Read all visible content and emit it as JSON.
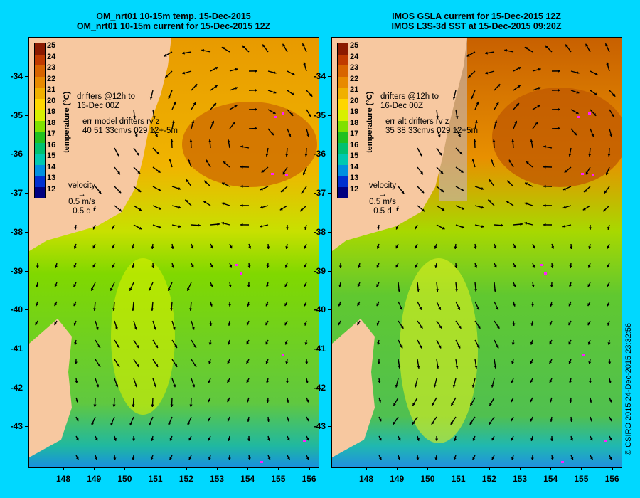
{
  "left_panel": {
    "title_line1": "OM_nrt01 10-15m temp. 15-Dec-2015",
    "title_line2": "OM_nrt01 10-15m current for 15-Dec-2015 12Z",
    "drifters_line1": "drifters @12h to",
    "drifters_line2": "16-Dec 00Z",
    "err_line1": "err model drifters rv z",
    "err_line2": "40 51 33cm/s 029 12+-5m"
  },
  "right_panel": {
    "title_line1": "IMOS GSLA current for 15-Dec-2015 12Z",
    "title_line2": "IMOS L3S-3d SST at 15-Dec-2015 09:20Z",
    "drifters_line1": "drifters @12h to",
    "drifters_line2": "16-Dec 00Z",
    "err_line1": "err alt drifters rv z",
    "err_line2": "35 38 33cm/s 029 12+5m"
  },
  "velocity_legend": {
    "label": "velocity",
    "speed": "0.5 m/s",
    "duration": "0.5 d"
  },
  "colorbar": {
    "title": "temperature (°C)",
    "ticks": [
      "25",
      "24",
      "23",
      "22",
      "21",
      "20",
      "19",
      "18",
      "17",
      "16",
      "15",
      "14",
      "13",
      "12"
    ],
    "colors": [
      "#8b1a00",
      "#c03a00",
      "#d86400",
      "#e88a00",
      "#f0b000",
      "#ffd600",
      "#d8f000",
      "#80e000",
      "#20c020",
      "#00c070",
      "#00c8b0",
      "#0090e0",
      "#0030d0",
      "#000080"
    ]
  },
  "x_ticks": [
    "148",
    "149",
    "150",
    "151",
    "152",
    "153",
    "154",
    "155",
    "156"
  ],
  "y_ticks": [
    "-34",
    "-35",
    "-36",
    "-37",
    "-38",
    "-39",
    "-40",
    "-41",
    "-42",
    "-43"
  ],
  "credit": "© CSIRO 2015  24-Dec-2015 23:32:56",
  "colors": {
    "land": "#f7c8a0",
    "background": "#00d8ff"
  }
}
